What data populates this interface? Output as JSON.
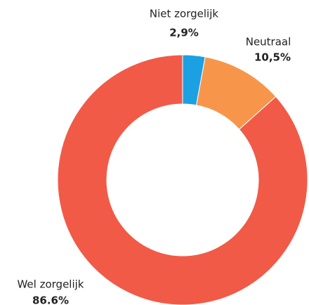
{
  "chart_data": {
    "type": "pie",
    "categories": [
      "Niet zorgelijk",
      "Neutraal",
      "Wel zorgelijk"
    ],
    "values": [
      2.9,
      10.5,
      86.6
    ],
    "value_labels": [
      "2,9%",
      "10,5%",
      "86.6%"
    ],
    "colors": [
      "#1ba1e2",
      "#f7964a",
      "#f15a47"
    ],
    "donut": true
  }
}
